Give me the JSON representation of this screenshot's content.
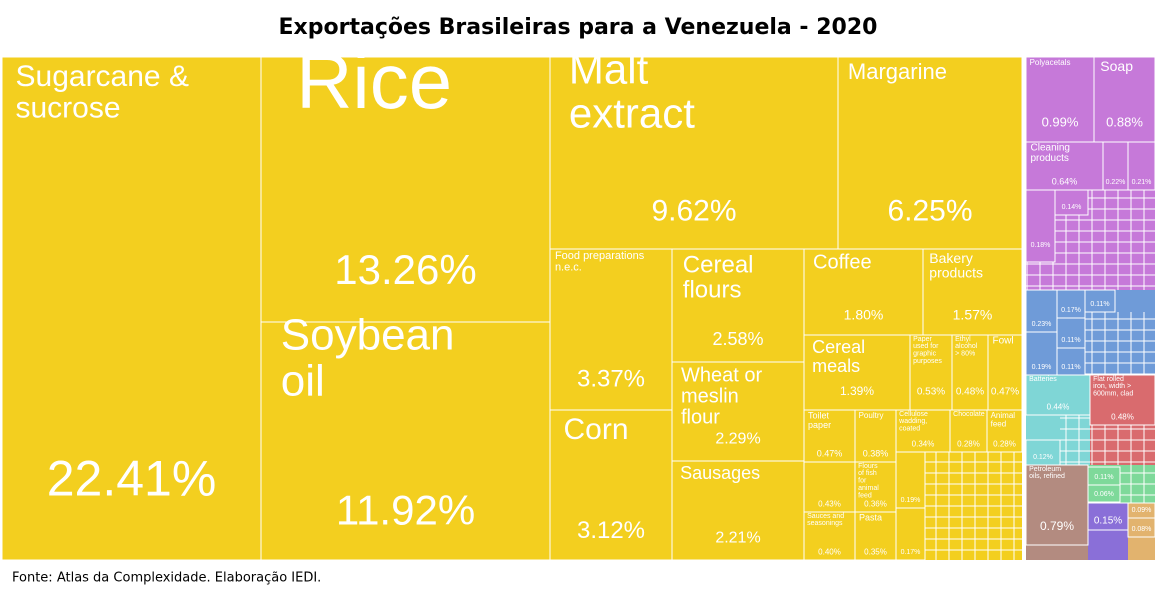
{
  "chart_data": {
    "type": "treemap",
    "title": "Exportações Brasileiras para a Venezuela - 2020",
    "source": "Fonte: Atlas da Complexidade. Elaboração IEDI.",
    "categories": [
      "Sugarcane & sucrose",
      "Rice",
      "Soybean oil",
      "Malt extract",
      "Margarine",
      "Food preparations n.e.c.",
      "Corn",
      "Cereal flours",
      "Wheat or meslin flour",
      "Sausages",
      "Coffee",
      "Bakery products",
      "Cereal meals",
      "Paper used for graphic purposes",
      "Ethyl alcohol > 80%",
      "Fowl",
      "Toilet paper",
      "Poultry",
      "Cellulose wadding, coated",
      "Chocolate",
      "Animal feed",
      null,
      "Flours of fish for animal feed",
      "Sauces and seasonings",
      "Pasta",
      null,
      null,
      "Polyacetals",
      "Soap",
      "Cleaning products",
      null,
      null,
      null,
      null,
      null,
      null,
      null,
      null,
      null,
      null,
      "Batteries",
      null,
      "Flat rolled iron, width > 600mm, clad",
      "Petroleum oils, refined",
      null,
      null,
      null,
      null,
      null
    ],
    "values": [
      22.41,
      13.26,
      11.92,
      9.62,
      6.25,
      3.37,
      3.12,
      2.58,
      2.29,
      2.21,
      1.8,
      1.57,
      1.39,
      0.53,
      0.48,
      0.47,
      0.47,
      0.38,
      0.34,
      0.28,
      0.28,
      0.43,
      0.36,
      0.4,
      0.35,
      0.19,
      0.17,
      0.99,
      0.88,
      0.64,
      0.22,
      0.21,
      0.18,
      0.14,
      0.23,
      0.19,
      0.17,
      0.11,
      0.11,
      0.11,
      0.44,
      0.12,
      0.48,
      0.79,
      0.11,
      0.06,
      0.15,
      0.09,
      0.08
    ],
    "value_labels": [
      "22.41%",
      "13.26%",
      "11.92%",
      "9.62%",
      "6.25%",
      "3.37%",
      "3.12%",
      "2.58%",
      "2.29%",
      "2.21%",
      "1.80%",
      "1.57%",
      "1.39%",
      "0.53%",
      "0.48%",
      "0.47%",
      "0.47%",
      "0.38%",
      "0.34%",
      "0.28%",
      "0.28%",
      "0.43%",
      "0.36%",
      "0.40%",
      "0.35%",
      "0.19%",
      "0.17%",
      "0.99%",
      "0.88%",
      "0.64%",
      "0.22%",
      "0.21%",
      "0.18%",
      "0.14%",
      "0.23%",
      "0.19%",
      "0.17%",
      "0.11%",
      "0.11%",
      "0.11%",
      "0.44%",
      "0.12%",
      "0.48%",
      "0.79%",
      "0.11%",
      "0.06%",
      "0.15%",
      "0.09%",
      "0.08%"
    ],
    "colors": [
      "#f3cf1f",
      "#f3cf1f",
      "#f3cf1f",
      "#f3cf1f",
      "#f3cf1f",
      "#f3cf1f",
      "#f3cf1f",
      "#f3cf1f",
      "#f3cf1f",
      "#f3cf1f",
      "#f3cf1f",
      "#f3cf1f",
      "#f3cf1f",
      "#f3cf1f",
      "#f3cf1f",
      "#f3cf1f",
      "#f3cf1f",
      "#f3cf1f",
      "#f3cf1f",
      "#f3cf1f",
      "#f3cf1f",
      "#f3cf1f",
      "#f3cf1f",
      "#f3cf1f",
      "#f3cf1f",
      "#f3cf1f",
      "#f3cf1f",
      "#c679d9",
      "#c679d9",
      "#c679d9",
      "#c679d9",
      "#c679d9",
      "#c679d9",
      "#c679d9",
      "#6f9bd8",
      "#6f9bd8",
      "#6f9bd8",
      "#6f9bd8",
      "#6f9bd8",
      "#6f9bd8",
      "#7fd6d6",
      "#7fd6d6",
      "#d96b6e",
      "#b38b80",
      "#7ed99a",
      "#7ed99a",
      "#8a6fd8",
      "#e2b36e",
      "#e2b36e"
    ]
  }
}
